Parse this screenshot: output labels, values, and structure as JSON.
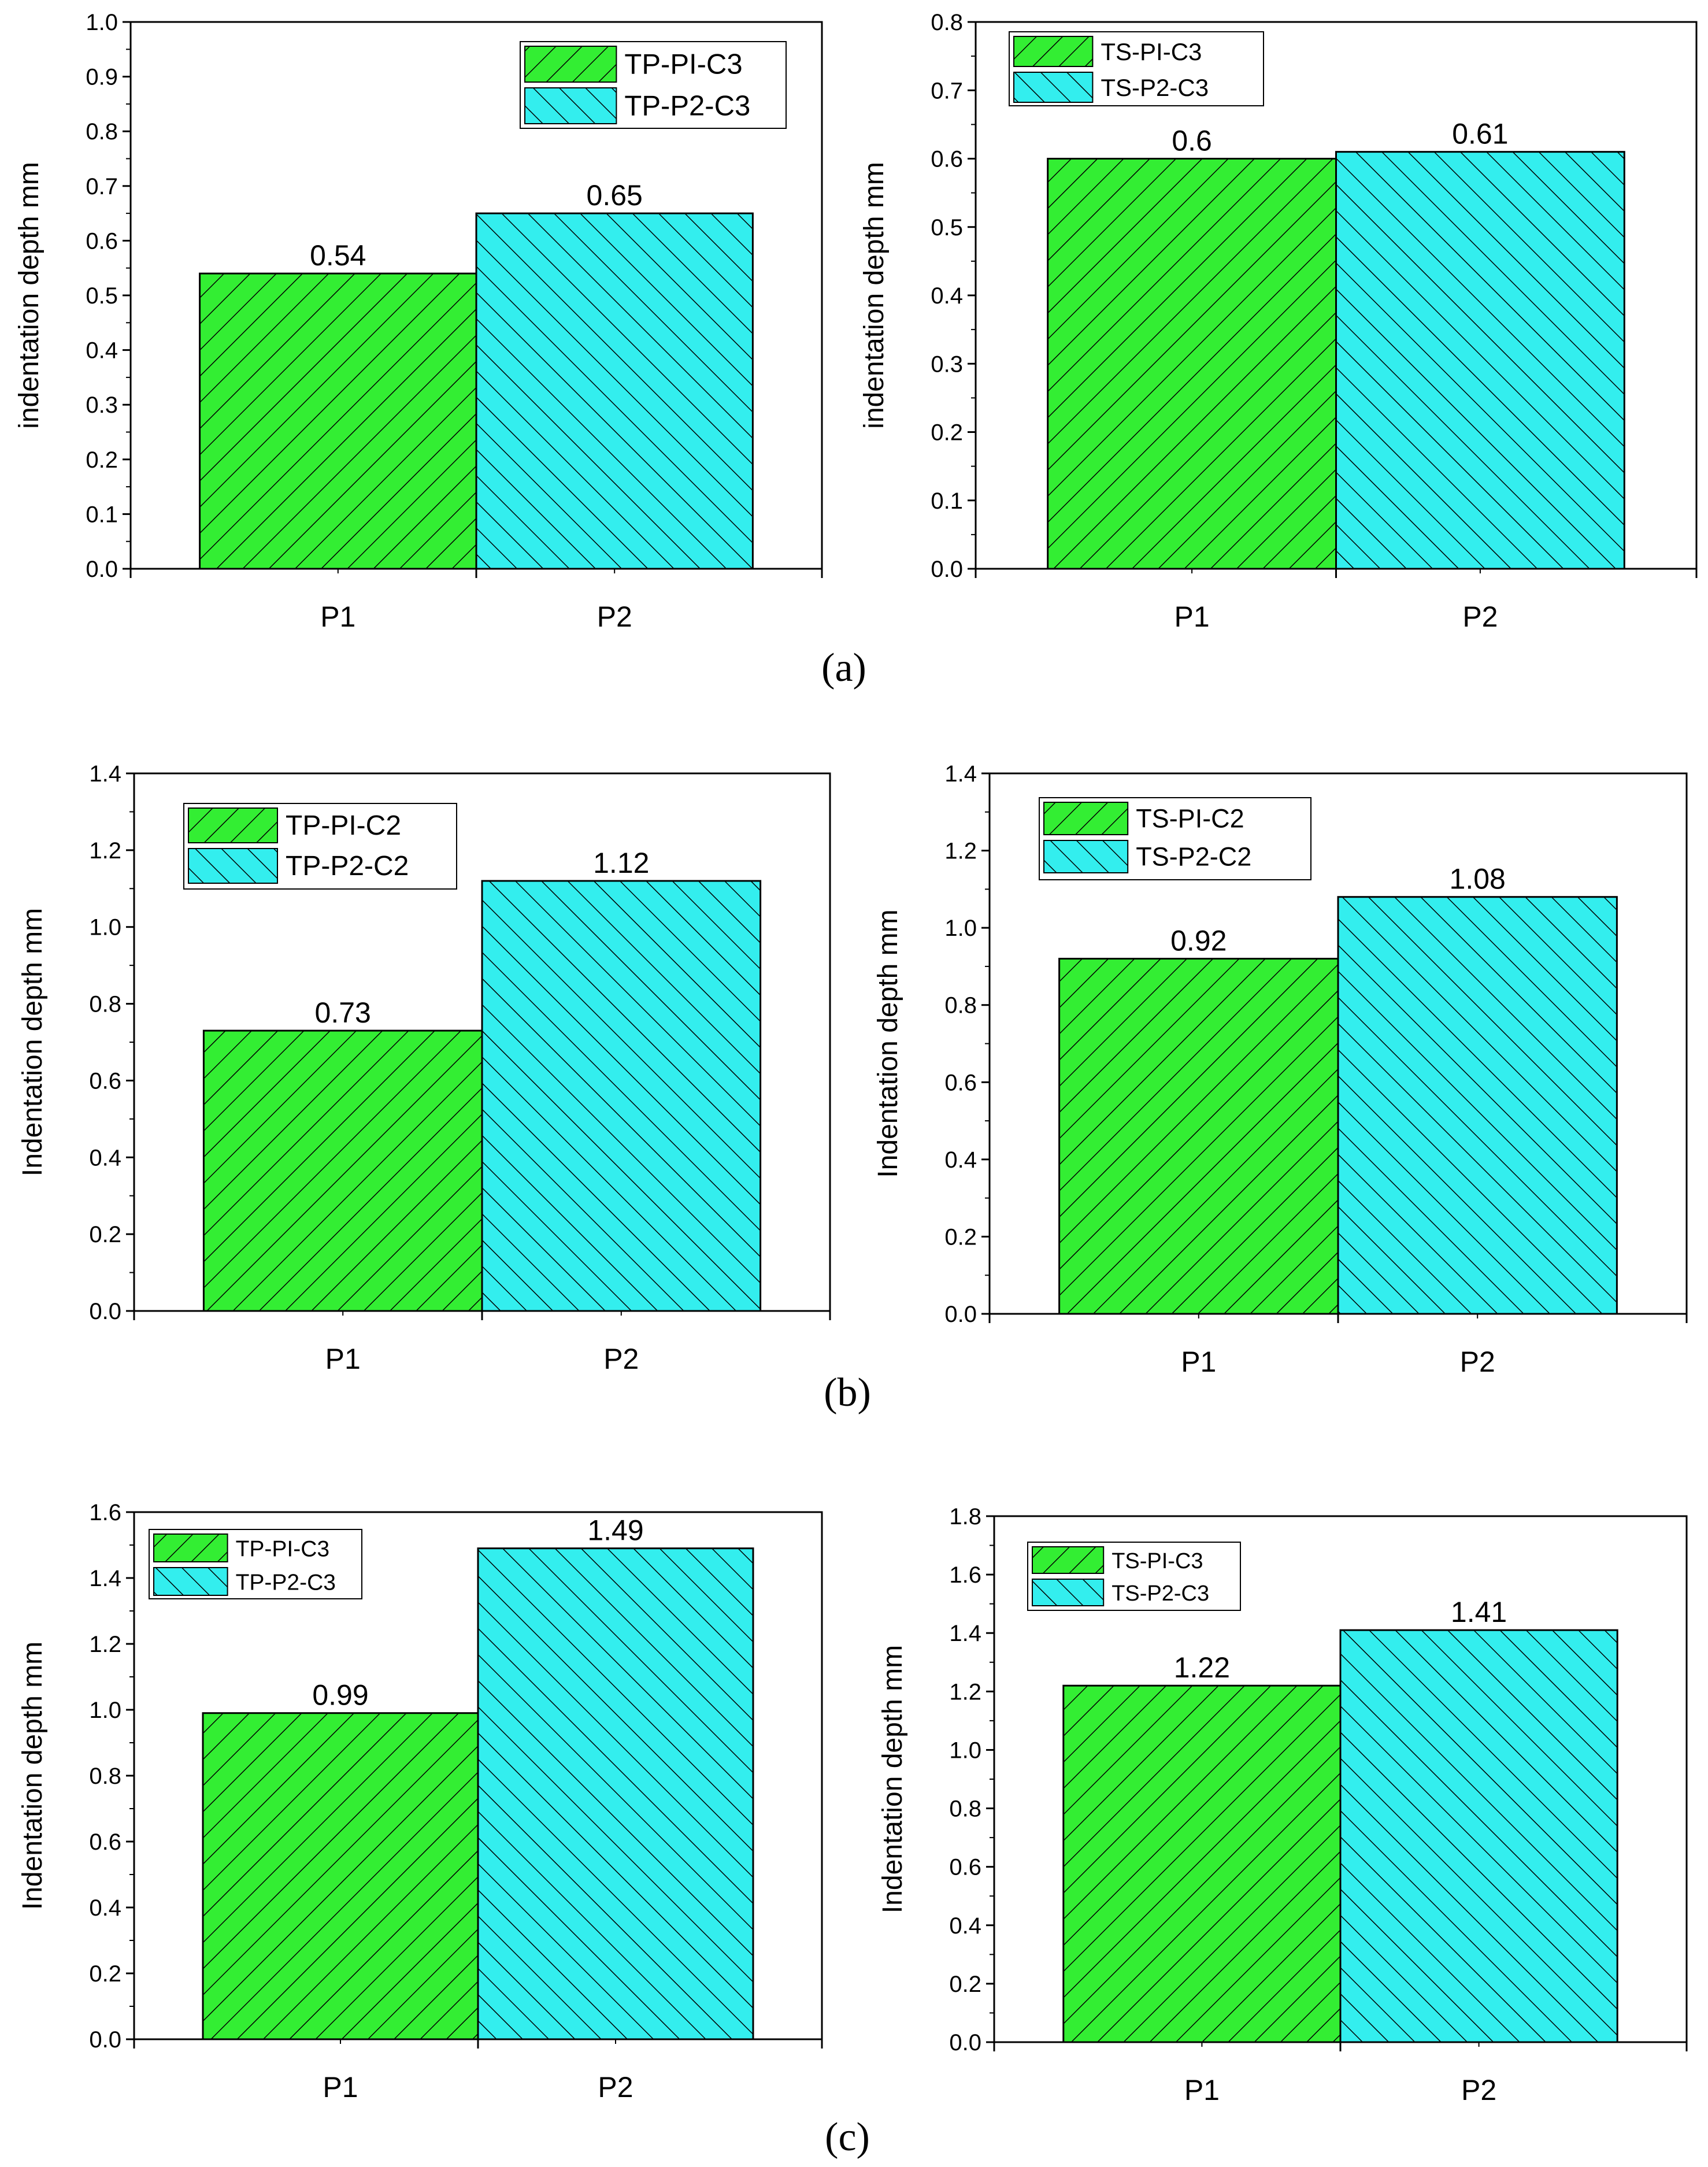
{
  "colors": {
    "series1": "#33ee33",
    "series2": "#33eeee",
    "stroke": "#000000"
  },
  "panel_labels": [
    "(a)",
    "(b)",
    "(c)"
  ],
  "chart_data": [
    {
      "type": "bar",
      "panel": "(a)",
      "categories": [
        "P1",
        "P2"
      ],
      "series": [
        {
          "name": "TP-PI-C3",
          "category": "P1",
          "value": 0.54
        },
        {
          "name": "TP-P2-C3",
          "category": "P2",
          "value": 0.65
        }
      ],
      "data_labels": [
        "0.54",
        "0.65"
      ],
      "ylabel": "indentation depth   mm",
      "ylim": [
        0,
        1.0
      ],
      "ticks": [
        "0.0",
        "0.1",
        "0.2",
        "0.3",
        "0.4",
        "0.5",
        "0.6",
        "0.7",
        "0.8",
        "0.9",
        "1.0"
      ],
      "legend_position": "top-right"
    },
    {
      "type": "bar",
      "panel": "(a)",
      "categories": [
        "P1",
        "P2"
      ],
      "series": [
        {
          "name": "TS-PI-C3",
          "category": "P1",
          "value": 0.6
        },
        {
          "name": "TS-P2-C3",
          "category": "P2",
          "value": 0.61
        }
      ],
      "data_labels": [
        "0.6",
        "0.61"
      ],
      "ylabel": "indentation depth   mm",
      "ylim": [
        0,
        0.8
      ],
      "ticks": [
        "0.0",
        "0.1",
        "0.2",
        "0.3",
        "0.4",
        "0.5",
        "0.6",
        "0.7",
        "0.8"
      ],
      "legend_position": "top-left"
    },
    {
      "type": "bar",
      "panel": "(b)",
      "categories": [
        "P1",
        "P2"
      ],
      "series": [
        {
          "name": "TP-PI-C2",
          "category": "P1",
          "value": 0.73
        },
        {
          "name": "TP-P2-C2",
          "category": "P2",
          "value": 1.12
        }
      ],
      "data_labels": [
        "0.73",
        "1.12"
      ],
      "ylabel": "Indentation depth   mm",
      "ylim": [
        0,
        1.4
      ],
      "ticks": [
        "0.0",
        "0.2",
        "0.4",
        "0.6",
        "0.8",
        "1.0",
        "1.2",
        "1.4"
      ],
      "legend_position": "top-left"
    },
    {
      "type": "bar",
      "panel": "(b)",
      "categories": [
        "P1",
        "P2"
      ],
      "series": [
        {
          "name": "TS-PI-C2",
          "category": "P1",
          "value": 0.92
        },
        {
          "name": "TS-P2-C2",
          "category": "P2",
          "value": 1.08
        }
      ],
      "data_labels": [
        "0.92",
        "1.08"
      ],
      "ylabel": "Indentation depth   mm",
      "ylim": [
        0,
        1.4
      ],
      "ticks": [
        "0.0",
        "0.2",
        "0.4",
        "0.6",
        "0.8",
        "1.0",
        "1.2",
        "1.4"
      ],
      "legend_position": "top-left"
    },
    {
      "type": "bar",
      "panel": "(c)",
      "categories": [
        "P1",
        "P2"
      ],
      "series": [
        {
          "name": "TP-PI-C3",
          "category": "P1",
          "value": 0.99
        },
        {
          "name": "TP-P2-C3",
          "category": "P2",
          "value": 1.49
        }
      ],
      "data_labels": [
        "0.99",
        "1.49"
      ],
      "ylabel": "Indentation depth   mm",
      "ylim": [
        0,
        1.6
      ],
      "ticks": [
        "0.0",
        "0.2",
        "0.4",
        "0.6",
        "0.8",
        "1.0",
        "1.2",
        "1.4",
        "1.6"
      ],
      "legend_position": "top-left"
    },
    {
      "type": "bar",
      "panel": "(c)",
      "categories": [
        "P1",
        "P2"
      ],
      "series": [
        {
          "name": "TS-PI-C3",
          "category": "P1",
          "value": 1.22
        },
        {
          "name": "TS-P2-C3",
          "category": "P2",
          "value": 1.41
        }
      ],
      "data_labels": [
        "1.22",
        "1.41"
      ],
      "ylabel": "Indentation depth   mm",
      "ylim": [
        0,
        1.8
      ],
      "ticks": [
        "0.0",
        "0.2",
        "0.4",
        "0.6",
        "0.8",
        "1.0",
        "1.2",
        "1.4",
        "1.6",
        "1.8"
      ],
      "legend_position": "top-left"
    }
  ]
}
